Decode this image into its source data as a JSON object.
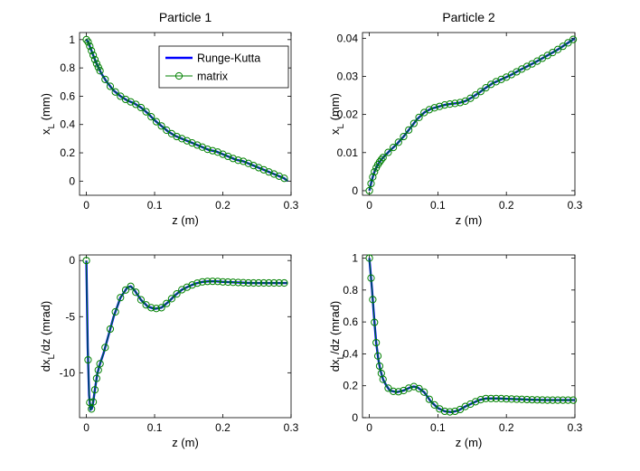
{
  "colors": {
    "runge_kutta": "#0000ff",
    "matrix": "#008000",
    "axes": "#000000",
    "background": "#ffffff"
  },
  "legend": {
    "entries": [
      "Runge-Kutta",
      "matrix"
    ],
    "location": "top-right of top-left panel"
  },
  "chart_data": [
    {
      "type": "line",
      "title": "Particle 1",
      "xlabel": "z (m)",
      "ylabel": "x",
      "ylabel_sub": "L",
      "ylabel_unit": " (mm)",
      "xlim": [
        -0.01,
        0.3
      ],
      "ylim": [
        -0.1,
        1.05
      ],
      "xticks": [
        0,
        0.1,
        0.2,
        0.3
      ],
      "xtick_labels": [
        "0",
        "0.1",
        "0.2",
        "0.3"
      ],
      "yticks": [
        0,
        0.2,
        0.4,
        0.6,
        0.8,
        1
      ],
      "ytick_labels": [
        "0",
        "0.2",
        "0.4",
        "0.6",
        "0.8",
        "1"
      ],
      "curve": [
        [
          0,
          1.0
        ],
        [
          0.003,
          0.98
        ],
        [
          0.006,
          0.94
        ],
        [
          0.01,
          0.89
        ],
        [
          0.014,
          0.84
        ],
        [
          0.018,
          0.8
        ],
        [
          0.022,
          0.76
        ],
        [
          0.03,
          0.7
        ],
        [
          0.04,
          0.64
        ],
        [
          0.05,
          0.6
        ],
        [
          0.06,
          0.57
        ],
        [
          0.07,
          0.55
        ],
        [
          0.08,
          0.52
        ],
        [
          0.09,
          0.48
        ],
        [
          0.1,
          0.43
        ],
        [
          0.11,
          0.39
        ],
        [
          0.12,
          0.35
        ],
        [
          0.13,
          0.32
        ],
        [
          0.14,
          0.3
        ],
        [
          0.15,
          0.28
        ],
        [
          0.16,
          0.26
        ],
        [
          0.17,
          0.24
        ],
        [
          0.18,
          0.22
        ],
        [
          0.19,
          0.21
        ],
        [
          0.2,
          0.19
        ],
        [
          0.21,
          0.17
        ],
        [
          0.22,
          0.15
        ],
        [
          0.23,
          0.14
        ],
        [
          0.24,
          0.12
        ],
        [
          0.25,
          0.1
        ],
        [
          0.26,
          0.08
        ],
        [
          0.27,
          0.06
        ],
        [
          0.28,
          0.04
        ],
        [
          0.29,
          0.02
        ],
        [
          0.295,
          0.0
        ]
      ],
      "series": [
        {
          "name": "Runge-Kutta",
          "style": "line"
        },
        {
          "name": "matrix",
          "style": "line+circle-markers"
        }
      ]
    },
    {
      "type": "line",
      "title": "Particle 2",
      "xlabel": "z (m)",
      "ylabel": "x",
      "ylabel_sub": "L",
      "ylabel_unit": " (mm)",
      "xlim": [
        -0.01,
        0.3
      ],
      "ylim": [
        -0.0012,
        0.0415
      ],
      "xticks": [
        0,
        0.1,
        0.2,
        0.3
      ],
      "xtick_labels": [
        "0",
        "0.1",
        "0.2",
        "0.3"
      ],
      "yticks": [
        0,
        0.01,
        0.02,
        0.03,
        0.04
      ],
      "ytick_labels": [
        "0",
        "0.01",
        "0.02",
        "0.03",
        "0.04"
      ],
      "curve": [
        [
          0,
          0.0
        ],
        [
          0.002,
          0.0015
        ],
        [
          0.004,
          0.003
        ],
        [
          0.006,
          0.0042
        ],
        [
          0.008,
          0.0052
        ],
        [
          0.01,
          0.006
        ],
        [
          0.013,
          0.007
        ],
        [
          0.016,
          0.0078
        ],
        [
          0.02,
          0.0087
        ],
        [
          0.03,
          0.0105
        ],
        [
          0.04,
          0.0122
        ],
        [
          0.05,
          0.0142
        ],
        [
          0.06,
          0.0165
        ],
        [
          0.07,
          0.0188
        ],
        [
          0.08,
          0.0205
        ],
        [
          0.09,
          0.0215
        ],
        [
          0.1,
          0.022
        ],
        [
          0.11,
          0.0225
        ],
        [
          0.12,
          0.0228
        ],
        [
          0.13,
          0.023
        ],
        [
          0.14,
          0.0235
        ],
        [
          0.15,
          0.0245
        ],
        [
          0.16,
          0.0257
        ],
        [
          0.17,
          0.027
        ],
        [
          0.18,
          0.0282
        ],
        [
          0.19,
          0.029
        ],
        [
          0.2,
          0.0298
        ],
        [
          0.21,
          0.0307
        ],
        [
          0.22,
          0.0317
        ],
        [
          0.23,
          0.0326
        ],
        [
          0.24,
          0.0335
        ],
        [
          0.25,
          0.0345
        ],
        [
          0.26,
          0.0355
        ],
        [
          0.27,
          0.0365
        ],
        [
          0.28,
          0.0376
        ],
        [
          0.29,
          0.0388
        ],
        [
          0.3,
          0.04
        ]
      ],
      "series": [
        {
          "name": "Runge-Kutta",
          "style": "line"
        },
        {
          "name": "matrix",
          "style": "line+circle-markers"
        }
      ]
    },
    {
      "type": "line",
      "title": "",
      "xlabel": "z (m)",
      "ylabel": "dx",
      "ylabel_sub": "L",
      "ylabel_unit": "/dz (mrad)",
      "xlim": [
        -0.01,
        0.3
      ],
      "ylim": [
        -14,
        0.5
      ],
      "xticks": [
        0,
        0.1,
        0.2,
        0.3
      ],
      "xtick_labels": [
        "0",
        "0.1",
        "0.2",
        "0.3"
      ],
      "yticks": [
        0,
        -5,
        -10
      ],
      "ytick_labels": [
        "0",
        "-5",
        "-10"
      ],
      "curve": [
        [
          0,
          0
        ],
        [
          0.002,
          -7.8
        ],
        [
          0.004,
          -12
        ],
        [
          0.006,
          -13.3
        ],
        [
          0.008,
          -13.2
        ],
        [
          0.01,
          -12.6
        ],
        [
          0.013,
          -11.3
        ],
        [
          0.016,
          -10.1
        ],
        [
          0.02,
          -9.2
        ],
        [
          0.025,
          -8.3
        ],
        [
          0.03,
          -7.2
        ],
        [
          0.04,
          -5.0
        ],
        [
          0.05,
          -3.3
        ],
        [
          0.06,
          -2.4
        ],
        [
          0.065,
          -2.3
        ],
        [
          0.07,
          -2.6
        ],
        [
          0.08,
          -3.5
        ],
        [
          0.09,
          -4.1
        ],
        [
          0.1,
          -4.3
        ],
        [
          0.11,
          -4.2
        ],
        [
          0.12,
          -3.7
        ],
        [
          0.13,
          -3.1
        ],
        [
          0.14,
          -2.6
        ],
        [
          0.15,
          -2.3
        ],
        [
          0.16,
          -2.05
        ],
        [
          0.17,
          -1.9
        ],
        [
          0.18,
          -1.85
        ],
        [
          0.19,
          -1.85
        ],
        [
          0.2,
          -1.9
        ],
        [
          0.22,
          -1.95
        ],
        [
          0.24,
          -2.0
        ],
        [
          0.26,
          -2.0
        ],
        [
          0.28,
          -2.0
        ],
        [
          0.295,
          -2.0
        ]
      ],
      "series": [
        {
          "name": "Runge-Kutta",
          "style": "line"
        },
        {
          "name": "matrix",
          "style": "line+circle-markers"
        }
      ]
    },
    {
      "type": "line",
      "title": "",
      "xlabel": "z (m)",
      "ylabel": "dx",
      "ylabel_sub": "L",
      "ylabel_unit": "/dz (mrad)",
      "xlim": [
        -0.01,
        0.3
      ],
      "ylim": [
        0,
        1.02
      ],
      "xticks": [
        0,
        0.1,
        0.2,
        0.3
      ],
      "xtick_labels": [
        "0",
        "0.1",
        "0.2",
        "0.3"
      ],
      "yticks": [
        0,
        0.2,
        0.4,
        0.6,
        0.8,
        1
      ],
      "ytick_labels": [
        "0",
        "0.2",
        "0.4",
        "0.6",
        "0.8",
        "1"
      ],
      "curve": [
        [
          0,
          1.0
        ],
        [
          0.002,
          0.9
        ],
        [
          0.004,
          0.8
        ],
        [
          0.006,
          0.68
        ],
        [
          0.008,
          0.57
        ],
        [
          0.01,
          0.47
        ],
        [
          0.013,
          0.37
        ],
        [
          0.016,
          0.3
        ],
        [
          0.02,
          0.24
        ],
        [
          0.025,
          0.2
        ],
        [
          0.03,
          0.17
        ],
        [
          0.04,
          0.16
        ],
        [
          0.05,
          0.17
        ],
        [
          0.06,
          0.19
        ],
        [
          0.065,
          0.195
        ],
        [
          0.07,
          0.19
        ],
        [
          0.08,
          0.16
        ],
        [
          0.09,
          0.1
        ],
        [
          0.1,
          0.06
        ],
        [
          0.11,
          0.04
        ],
        [
          0.12,
          0.035
        ],
        [
          0.13,
          0.045
        ],
        [
          0.14,
          0.07
        ],
        [
          0.15,
          0.09
        ],
        [
          0.16,
          0.11
        ],
        [
          0.17,
          0.12
        ],
        [
          0.18,
          0.12
        ],
        [
          0.19,
          0.12
        ],
        [
          0.2,
          0.118
        ],
        [
          0.22,
          0.115
        ],
        [
          0.24,
          0.112
        ],
        [
          0.26,
          0.11
        ],
        [
          0.28,
          0.11
        ],
        [
          0.3,
          0.11
        ]
      ],
      "series": [
        {
          "name": "Runge-Kutta",
          "style": "line"
        },
        {
          "name": "matrix",
          "style": "line+circle-markers"
        }
      ]
    }
  ]
}
